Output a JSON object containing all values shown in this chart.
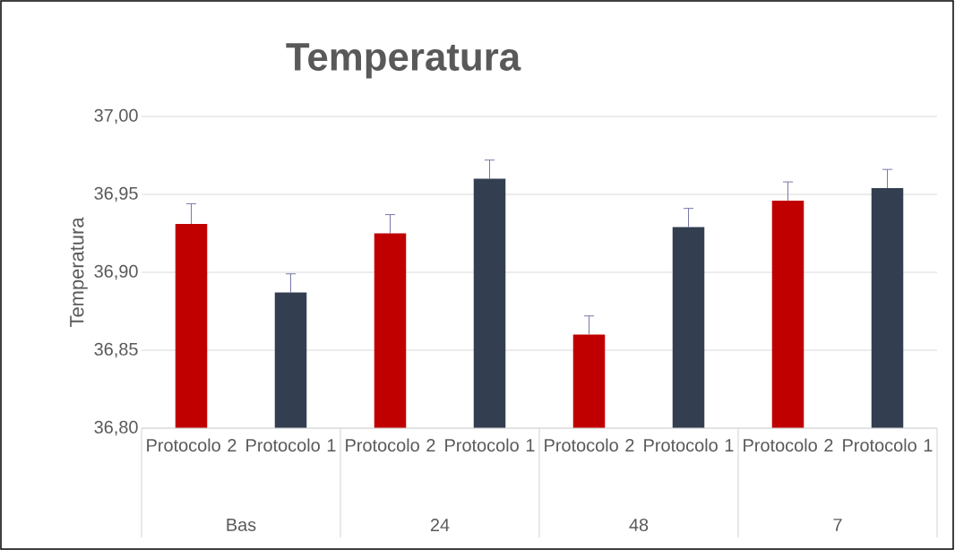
{
  "chart_data": {
    "type": "bar",
    "title": "Temperatura",
    "ylabel": "Temperatura",
    "categories": [
      "Protocolo 2",
      "Protocolo 1",
      "Protocolo 2",
      "Protocolo 1",
      "Protocolo 2",
      "Protocolo 1",
      "Protocolo 2",
      "Protocolo 1"
    ],
    "values": [
      36.931,
      36.887,
      36.925,
      36.96,
      36.86,
      36.929,
      36.946,
      36.954
    ],
    "colors": [
      "#c00000",
      "#333f50",
      "#c00000",
      "#333f50",
      "#c00000",
      "#333f50",
      "#c00000",
      "#333f50"
    ],
    "errors": [
      [
        36.931,
        36.944
      ],
      [
        36.887,
        36.899
      ],
      [
        36.925,
        36.937
      ],
      [
        36.96,
        36.972
      ],
      [
        36.86,
        36.872
      ],
      [
        36.929,
        36.941
      ],
      [
        36.946,
        36.958
      ],
      [
        36.954,
        36.966
      ]
    ],
    "ylim": [
      36.8,
      37.0
    ],
    "yticks": [
      {
        "value": 36.8,
        "label": "36,80"
      },
      {
        "value": 36.85,
        "label": "36,85"
      },
      {
        "value": 36.9,
        "label": "36,90"
      },
      {
        "value": 36.95,
        "label": "36,95"
      },
      {
        "value": 37.0,
        "label": "37,00"
      }
    ],
    "grid": "y",
    "annotations": [
      "Bas",
      "24",
      "48",
      "7"
    ]
  }
}
